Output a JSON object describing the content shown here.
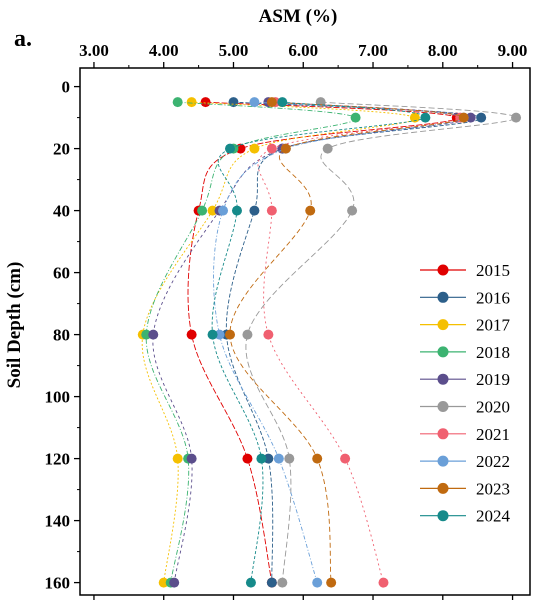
{
  "chart_data": {
    "type": "line",
    "panel_label": "a.",
    "title": "",
    "xlabel": "ASM (%)",
    "ylabel": "Soil Depth (cm)",
    "xlim": [
      2.8,
      9.25
    ],
    "ylim": [
      -6,
      164
    ],
    "x_axis_position": "top",
    "y_inverted": true,
    "x_ticks": [
      3.0,
      4.0,
      5.0,
      6.0,
      7.0,
      8.0,
      9.0
    ],
    "x_tick_labels": [
      "3.00",
      "4.00",
      "5.00",
      "6.00",
      "7.00",
      "8.00",
      "9.00"
    ],
    "y_ticks": [
      0,
      20,
      40,
      60,
      80,
      100,
      120,
      140,
      160
    ],
    "y_tick_labels": [
      "0",
      "20",
      "40",
      "60",
      "80",
      "100",
      "120",
      "140",
      "160"
    ],
    "grid": false,
    "legend_position": "right",
    "depths": [
      5,
      10,
      20,
      40,
      80,
      120,
      160
    ],
    "series": [
      {
        "name": "2015",
        "color": "#e00000",
        "values": [
          4.6,
          8.2,
          5.1,
          4.5,
          4.4,
          5.2,
          5.55
        ]
      },
      {
        "name": "2016",
        "color": "#2c5f8a",
        "values": [
          5.0,
          8.55,
          5.7,
          5.3,
          4.9,
          5.5,
          5.55
        ]
      },
      {
        "name": "2017",
        "color": "#f5c000",
        "values": [
          4.4,
          7.6,
          5.3,
          4.7,
          3.7,
          4.2,
          4.0
        ]
      },
      {
        "name": "2018",
        "color": "#3cb371",
        "values": [
          4.2,
          6.75,
          5.0,
          4.55,
          3.75,
          4.35,
          4.1
        ]
      },
      {
        "name": "2019",
        "color": "#5b4e8c",
        "values": [
          5.5,
          8.4,
          5.7,
          4.8,
          3.85,
          4.4,
          4.15
        ]
      },
      {
        "name": "2020",
        "color": "#999999",
        "values": [
          6.25,
          9.05,
          6.35,
          6.7,
          5.2,
          5.8,
          5.7
        ]
      },
      {
        "name": "2021",
        "color": "#f06070",
        "values": [
          5.6,
          8.25,
          5.55,
          5.55,
          5.5,
          6.6,
          7.15
        ]
      },
      {
        "name": "2022",
        "color": "#6a9fd8",
        "values": [
          5.3,
          8.3,
          5.75,
          4.85,
          4.8,
          5.65,
          6.2
        ]
      },
      {
        "name": "2023",
        "color": "#c06a10",
        "values": [
          5.55,
          8.3,
          5.75,
          6.1,
          4.95,
          6.2,
          6.4
        ]
      },
      {
        "name": "2024",
        "color": "#168a8a",
        "values": [
          5.7,
          7.75,
          4.95,
          5.05,
          4.7,
          5.4,
          5.25
        ]
      }
    ]
  }
}
